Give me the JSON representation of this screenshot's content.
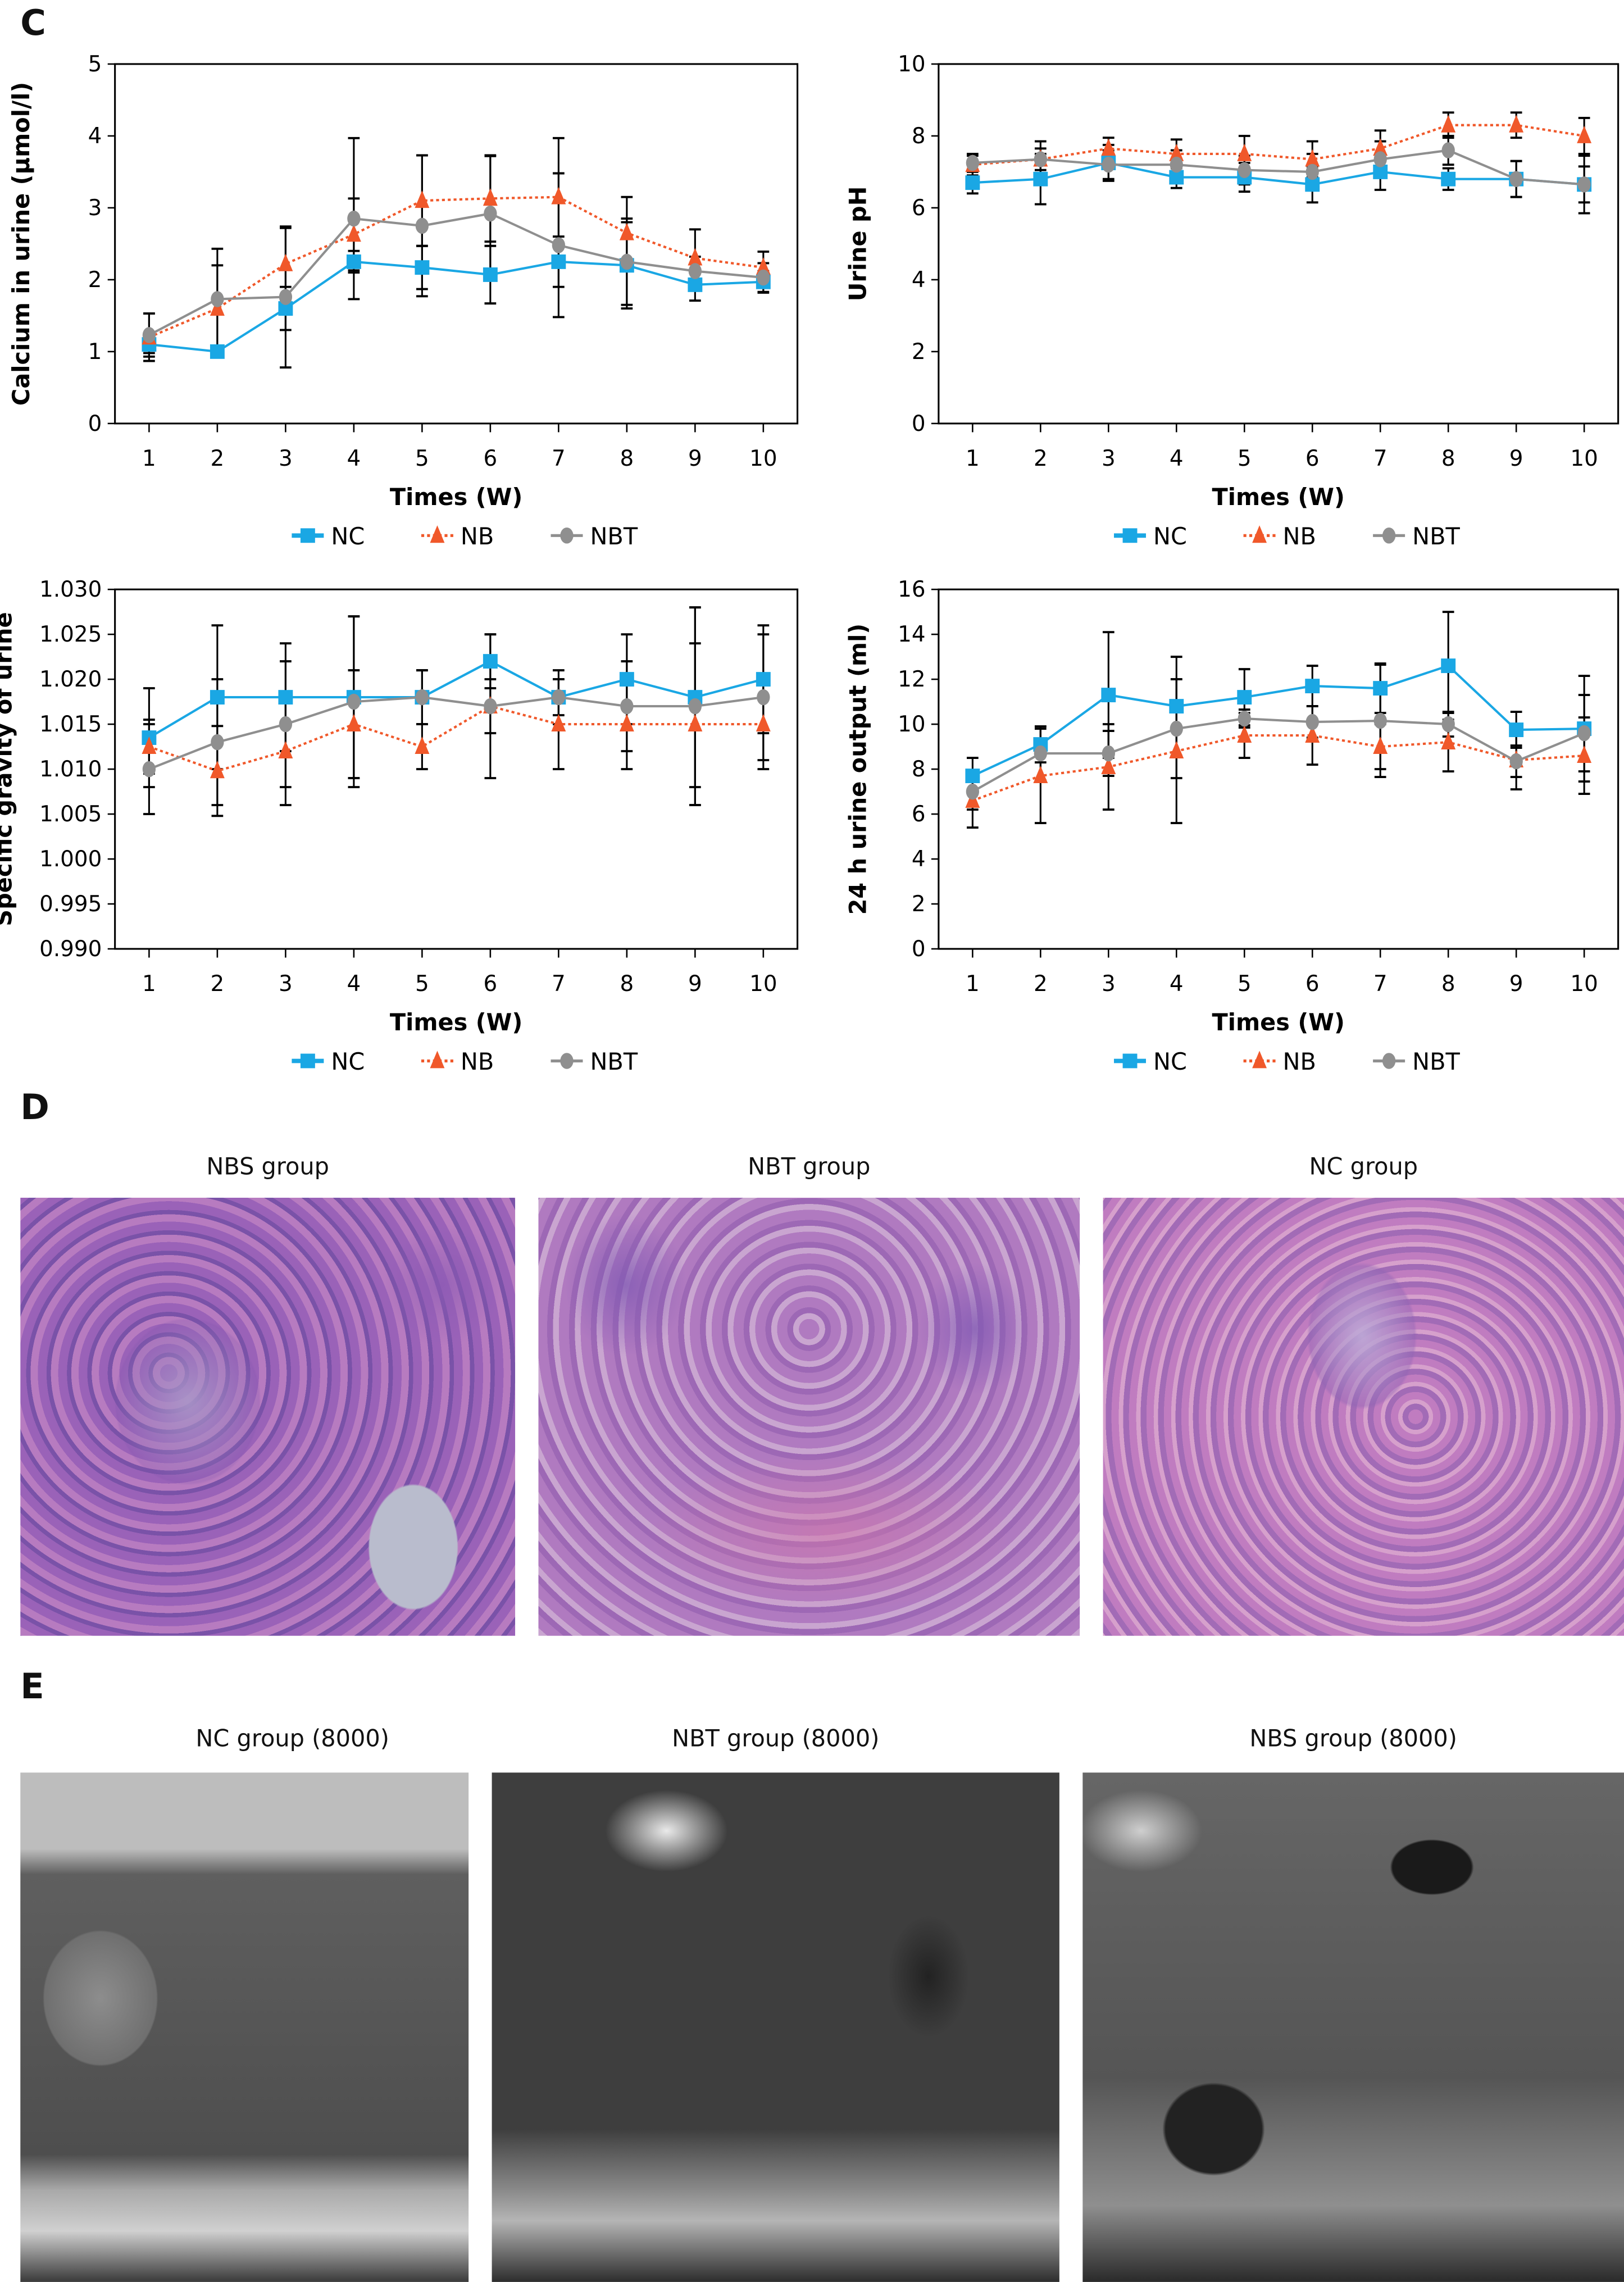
{
  "panels": {
    "c": "C",
    "d": "D",
    "e": "E"
  },
  "colors": {
    "NC": "#1aa7e4",
    "NB": "#f0582a",
    "NBT": "#8f8f8f"
  },
  "legend": [
    "NC",
    "NB",
    "NBT"
  ],
  "chart_data": [
    {
      "type": "line",
      "ylabel": "Calcium in urine (µmol/l)",
      "xlabel": "Times (W)",
      "x": [
        1,
        2,
        3,
        4,
        5,
        6,
        7,
        8,
        9,
        10
      ],
      "ylim": [
        0,
        5
      ],
      "yticks": [
        "0",
        "1",
        "2",
        "3",
        "4",
        "5"
      ],
      "ytick_values": [
        0,
        1,
        2,
        3,
        4,
        5
      ],
      "series": [
        {
          "name": "NC",
          "values": [
            1.1,
            1.0,
            1.6,
            2.25,
            2.17,
            2.07,
            2.25,
            2.2,
            1.93,
            1.97
          ],
          "err": [
            0.12,
            0.0,
            0.3,
            0.15,
            0.3,
            0.4,
            0.35,
            0.6,
            0.22,
            0.15
          ]
        },
        {
          "name": "NB",
          "values": [
            1.2,
            1.6,
            2.22,
            2.63,
            3.1,
            3.13,
            3.15,
            2.65,
            2.3,
            2.17
          ],
          "err": [
            0.33,
            0.6,
            0.5,
            0.5,
            0.63,
            0.6,
            0.82,
            0.5,
            0.4,
            0.22
          ]
        },
        {
          "name": "NBT",
          "values": [
            1.23,
            1.73,
            1.76,
            2.85,
            2.75,
            2.92,
            2.48,
            2.25,
            2.12,
            2.03
          ],
          "err": [
            0.3,
            0.7,
            0.98,
            1.12,
            0.98,
            0.8,
            1.0,
            0.6,
            0.2,
            0.2
          ]
        }
      ]
    },
    {
      "type": "line",
      "ylabel": "Urine pH",
      "xlabel": "Times (W)",
      "x": [
        1,
        2,
        3,
        4,
        5,
        6,
        7,
        8,
        9,
        10
      ],
      "ylim": [
        0,
        10
      ],
      "yticks": [
        "0",
        "2",
        "4",
        "6",
        "8",
        "10"
      ],
      "ytick_values": [
        0,
        2,
        4,
        6,
        8,
        10
      ],
      "series": [
        {
          "name": "NC",
          "values": [
            6.7,
            6.8,
            7.25,
            6.85,
            6.85,
            6.65,
            7.0,
            6.8,
            6.8,
            6.65
          ],
          "err": [
            0.3,
            0.7,
            0.5,
            0.3,
            0.4,
            0.5,
            0.5,
            0.3,
            0.5,
            0.8
          ]
        },
        {
          "name": "NB",
          "values": [
            7.2,
            7.35,
            7.65,
            7.5,
            7.5,
            7.35,
            7.65,
            8.3,
            8.3,
            8.0
          ],
          "err": [
            0.3,
            0.5,
            0.3,
            0.4,
            0.5,
            0.5,
            0.5,
            0.35,
            0.35,
            0.5
          ]
        },
        {
          "name": "NBT",
          "values": [
            7.25,
            7.35,
            7.2,
            7.2,
            7.05,
            7.0,
            7.35,
            7.6,
            6.8,
            6.65
          ],
          "err": [
            0.2,
            0.3,
            0.4,
            0.4,
            0.4,
            0.5,
            0.5,
            0.4,
            0.5,
            0.5
          ]
        }
      ]
    },
    {
      "type": "line",
      "ylabel": "Specific gravity of urine",
      "xlabel": "Times (W)",
      "x": [
        1,
        2,
        3,
        4,
        5,
        6,
        7,
        8,
        9,
        10
      ],
      "ylim": [
        0.99,
        1.03
      ],
      "yticks": [
        "0.990",
        "0.995",
        "1.000",
        "1.005",
        "1.010",
        "1.015",
        "1.020",
        "1.025",
        "1.030"
      ],
      "ytick_values": [
        0.99,
        0.995,
        1.0,
        1.005,
        1.01,
        1.015,
        1.02,
        1.025,
        1.03
      ],
      "series": [
        {
          "name": "NC",
          "values": [
            1.0135,
            1.018,
            1.018,
            1.018,
            1.018,
            1.022,
            1.018,
            1.02,
            1.018,
            1.02
          ],
          "err": [
            0.0055,
            0.008,
            0.006,
            0.009,
            0.003,
            0.003,
            0.003,
            0.005,
            0.01,
            0.006
          ]
        },
        {
          "name": "NB",
          "values": [
            1.0125,
            1.0098,
            1.012,
            1.015,
            1.0125,
            1.017,
            1.015,
            1.015,
            1.015,
            1.015
          ],
          "err": [
            0.003,
            0.005,
            0.006,
            0.006,
            0.0025,
            0.003,
            0.005,
            0.005,
            0.009,
            0.005
          ]
        },
        {
          "name": "NBT",
          "values": [
            1.01,
            1.013,
            1.015,
            1.0175,
            1.018,
            1.017,
            1.018,
            1.017,
            1.017,
            1.018
          ],
          "err": [
            0.005,
            0.007,
            0.007,
            0.0095,
            0.003,
            0.008,
            0.002,
            0.005,
            0.011,
            0.007
          ]
        }
      ]
    },
    {
      "type": "line",
      "ylabel": "24 h urine output (ml)",
      "xlabel": "Times (W)",
      "x": [
        1,
        2,
        3,
        4,
        5,
        6,
        7,
        8,
        9,
        10
      ],
      "ylim": [
        0,
        16
      ],
      "yticks": [
        "0",
        "2",
        "4",
        "6",
        "8",
        "10",
        "12",
        "14",
        "16"
      ],
      "ytick_values": [
        0,
        2,
        4,
        6,
        8,
        10,
        12,
        14,
        16
      ],
      "series": [
        {
          "name": "NC",
          "values": [
            7.7,
            9.1,
            11.3,
            10.8,
            11.2,
            11.7,
            11.6,
            12.6,
            9.75,
            9.8
          ],
          "err": [
            0.8,
            0.8,
            2.8,
            2.2,
            1.25,
            0.9,
            1.1,
            2.4,
            0.8,
            2.35
          ]
        },
        {
          "name": "NB",
          "values": [
            6.6,
            7.7,
            8.1,
            8.8,
            9.5,
            9.5,
            9.0,
            9.2,
            8.4,
            8.6
          ],
          "err": [
            1.2,
            2.1,
            1.9,
            3.2,
            1.0,
            1.3,
            1.0,
            1.3,
            1.3,
            1.7
          ]
        },
        {
          "name": "NBT",
          "values": [
            7.0,
            8.7,
            8.7,
            9.8,
            10.25,
            10.1,
            10.15,
            10.0,
            8.35,
            9.6
          ],
          "err": [
            0.8,
            1.2,
            1.0,
            2.2,
            0.4,
            0.7,
            2.5,
            0.55,
            0.7,
            1.7
          ]
        }
      ]
    }
  ],
  "histology": {
    "titles": [
      "NBS group",
      "NBT group",
      "NC group"
    ]
  },
  "em": {
    "titles": [
      "NC group (8000)",
      "NBT group (8000)",
      "NBS group (8000)"
    ]
  }
}
